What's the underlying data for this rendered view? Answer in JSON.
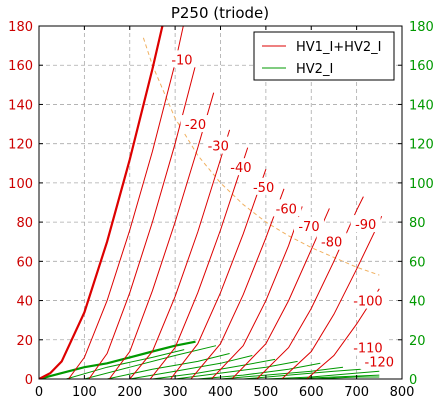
{
  "chart_data": {
    "type": "line",
    "title": "P250 (triode)",
    "xlabel": "",
    "ylabel": "",
    "xlim": [
      0,
      800
    ],
    "ylim": [
      0,
      180
    ],
    "y2lim": [
      0,
      180
    ],
    "grid": true,
    "legend_position": "top-right",
    "x_ticks": [
      "0",
      "100",
      "200",
      "300",
      "400",
      "500",
      "600",
      "700",
      "800"
    ],
    "y_ticks_left": [
      "0",
      "20",
      "40",
      "60",
      "80",
      "100",
      "120",
      "140",
      "160",
      "180"
    ],
    "y_ticks_right": [
      "0",
      "20",
      "40",
      "60",
      "80",
      "100",
      "120",
      "140",
      "160",
      "180"
    ],
    "left_axis_color": "#cc0000",
    "right_axis_color": "#009900",
    "legend": [
      {
        "label": "HV1_I+HV2_I",
        "color": "#dd0000"
      },
      {
        "label": "HV2_I",
        "color": "#009900"
      }
    ],
    "series_total_current": {
      "name": "HV1_I+HV2_I",
      "color": "#dd0000",
      "curves": [
        {
          "grid_voltage": "0",
          "bold": true,
          "points": [
            [
              0,
              0
            ],
            [
              25,
              3
            ],
            [
              50,
              9
            ],
            [
              100,
              34
            ],
            [
              150,
              70
            ],
            [
              200,
              112
            ],
            [
              250,
              158
            ],
            [
              272,
              180
            ]
          ]
        },
        {
          "grid_voltage": "-10",
          "points": [
            [
              65,
              0
            ],
            [
              100,
              11
            ],
            [
              150,
              40
            ],
            [
              200,
              76
            ],
            [
              250,
              116
            ],
            [
              300,
              161
            ],
            [
              318,
              180
            ]
          ]
        },
        {
          "grid_voltage": "-20",
          "points": [
            [
              110,
              0
            ],
            [
              150,
              13
            ],
            [
              200,
              44
            ],
            [
              250,
              80
            ],
            [
              300,
              120
            ],
            [
              345,
              160
            ]
          ]
        },
        {
          "grid_voltage": "-30",
          "points": [
            [
              155,
              0
            ],
            [
              200,
              14
            ],
            [
              250,
              45
            ],
            [
              300,
              80
            ],
            [
              350,
              118
            ],
            [
              385,
              146
            ]
          ]
        },
        {
          "grid_voltage": "-40",
          "points": [
            [
              200,
              0
            ],
            [
              250,
              14
            ],
            [
              300,
              42
            ],
            [
              350,
              75
            ],
            [
              400,
              112
            ],
            [
              420,
              127
            ]
          ]
        },
        {
          "grid_voltage": "-50",
          "points": [
            [
              245,
              0
            ],
            [
              300,
              16
            ],
            [
              350,
              44
            ],
            [
              400,
              76
            ],
            [
              450,
              111
            ],
            [
              460,
              118
            ]
          ]
        },
        {
          "grid_voltage": "-60",
          "points": [
            [
              290,
              0
            ],
            [
              350,
              18
            ],
            [
              400,
              44
            ],
            [
              450,
              74
            ],
            [
              500,
              107
            ]
          ]
        },
        {
          "grid_voltage": "-70",
          "points": [
            [
              335,
              0
            ],
            [
              400,
              18
            ],
            [
              450,
              43
            ],
            [
              500,
              72
            ],
            [
              540,
              97
            ]
          ]
        },
        {
          "grid_voltage": "-80",
          "points": [
            [
              380,
              0
            ],
            [
              450,
              17
            ],
            [
              500,
              40
            ],
            [
              550,
              68
            ],
            [
              580,
              88
            ]
          ]
        },
        {
          "grid_voltage": "-90",
          "points": [
            [
              425,
              0
            ],
            [
              500,
              18
            ],
            [
              550,
              40
            ],
            [
              600,
              66
            ],
            [
              640,
              87
            ]
          ]
        },
        {
          "grid_voltage": "-100",
          "points": [
            [
              480,
              0
            ],
            [
              550,
              16
            ],
            [
              600,
              36
            ],
            [
              650,
              60
            ],
            [
              700,
              86
            ],
            [
              715,
              93
            ]
          ]
        },
        {
          "grid_voltage": "-110",
          "points": [
            [
              535,
              0
            ],
            [
              600,
              14
            ],
            [
              650,
              33
            ],
            [
              700,
              56
            ],
            [
              750,
              80
            ],
            [
              755,
              83
            ]
          ]
        },
        {
          "grid_voltage": "-120",
          "points": [
            [
              590,
              0
            ],
            [
              650,
              12
            ],
            [
              700,
              28
            ],
            [
              750,
              46
            ]
          ]
        }
      ]
    },
    "series_screen_current": {
      "name": "HV2_I",
      "color": "#009900",
      "curves": [
        {
          "grid_voltage": "0",
          "bold": true,
          "points": [
            [
              0,
              0
            ],
            [
              50,
              3
            ],
            [
              100,
              6
            ],
            [
              150,
              8
            ],
            [
              200,
              11
            ],
            [
              250,
              14
            ],
            [
              300,
              17
            ],
            [
              345,
              19
            ]
          ]
        },
        {
          "grid_voltage": "-10",
          "points": [
            [
              60,
              0
            ],
            [
              150,
              6
            ],
            [
              250,
              11
            ],
            [
              320,
              15
            ]
          ]
        },
        {
          "grid_voltage": "-20",
          "points": [
            [
              100,
              0
            ],
            [
              200,
              6
            ],
            [
              300,
              12
            ],
            [
              390,
              17
            ]
          ]
        },
        {
          "grid_voltage": "-30",
          "points": [
            [
              150,
              0
            ],
            [
              250,
              5
            ],
            [
              350,
              9
            ],
            [
              420,
              13
            ]
          ]
        },
        {
          "grid_voltage": "-40",
          "points": [
            [
              200,
              0
            ],
            [
              300,
              4
            ],
            [
              400,
              8
            ],
            [
              470,
              12
            ]
          ]
        },
        {
          "grid_voltage": "-50",
          "points": [
            [
              250,
              0
            ],
            [
              350,
              3
            ],
            [
              450,
              7
            ],
            [
              520,
              10
            ]
          ]
        },
        {
          "grid_voltage": "-60",
          "points": [
            [
              300,
              0
            ],
            [
              400,
              3
            ],
            [
              500,
              6
            ],
            [
              570,
              9
            ]
          ]
        },
        {
          "grid_voltage": "-70",
          "points": [
            [
              350,
              0
            ],
            [
              450,
              2
            ],
            [
              550,
              5
            ],
            [
              620,
              8
            ]
          ]
        },
        {
          "grid_voltage": "-80",
          "points": [
            [
              400,
              0
            ],
            [
              500,
              2
            ],
            [
              600,
              4
            ],
            [
              670,
              6
            ]
          ]
        },
        {
          "grid_voltage": "-90",
          "points": [
            [
              450,
              0
            ],
            [
              550,
              2
            ],
            [
              650,
              4
            ],
            [
              710,
              5
            ]
          ]
        },
        {
          "grid_voltage": "-100",
          "points": [
            [
              500,
              0
            ],
            [
              600,
              1
            ],
            [
              700,
              3
            ],
            [
              750,
              4
            ]
          ]
        },
        {
          "grid_voltage": "-110",
          "points": [
            [
              550,
              0
            ],
            [
              650,
              1
            ],
            [
              750,
              2
            ]
          ]
        },
        {
          "grid_voltage": "-120",
          "points": [
            [
              600,
              0
            ],
            [
              700,
              1
            ],
            [
              750,
              1
            ]
          ]
        }
      ]
    },
    "max_dissipation_curve": {
      "color": "#f0b060",
      "style": "dashed",
      "points": [
        [
          230,
          174
        ],
        [
          250,
          160
        ],
        [
          300,
          133
        ],
        [
          350,
          114
        ],
        [
          400,
          100
        ],
        [
          450,
          89
        ],
        [
          500,
          80
        ],
        [
          550,
          73
        ],
        [
          600,
          67
        ],
        [
          650,
          62
        ],
        [
          700,
          57
        ],
        [
          750,
          53
        ]
      ]
    },
    "curve_labels": [
      {
        "text": "-10",
        "x": 315,
        "y": 163
      },
      {
        "text": "-20",
        "x": 345,
        "y": 130
      },
      {
        "text": "-30",
        "x": 395,
        "y": 119
      },
      {
        "text": "-40",
        "x": 445,
        "y": 108
      },
      {
        "text": "-50",
        "x": 495,
        "y": 98
      },
      {
        "text": "-60",
        "x": 545,
        "y": 87
      },
      {
        "text": "-70",
        "x": 595,
        "y": 78
      },
      {
        "text": "-80",
        "x": 645,
        "y": 70
      },
      {
        "text": "-90",
        "x": 720,
        "y": 79
      },
      {
        "text": "-100",
        "x": 725,
        "y": 40
      },
      {
        "text": "-110",
        "x": 725,
        "y": 16
      },
      {
        "text": "-120",
        "x": 750,
        "y": 9
      }
    ]
  }
}
